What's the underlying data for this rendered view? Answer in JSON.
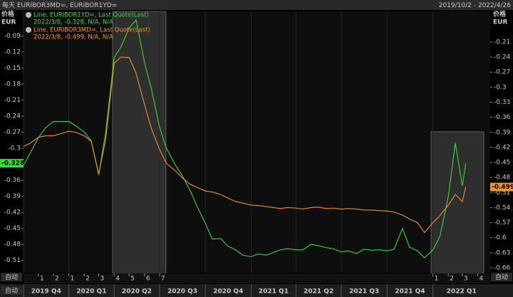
{
  "header": {
    "title": "每天 EURIBOR3MD=, EURIBOR1YD=",
    "date_range": "2019/10/2 - 2022/4/26",
    "auto_button": "自动"
  },
  "chart_data": {
    "type": "line",
    "y_axis_label": "价格",
    "y_unit": "EUR",
    "y2_axis_label": "价格",
    "y2_unit": "EUR",
    "xlim": [
      "2019/10/2",
      "2022/4/26"
    ],
    "x": [
      "2019/10/2",
      "2019/10/15",
      "2019/11/1",
      "2019/11/15",
      "2019/12/1",
      "2019/12/15",
      "2020/1/1",
      "2020/1/15",
      "2020/2/1",
      "2020/2/15",
      "2020/3/1",
      "2020/3/15",
      "2020/4/1",
      "2020/4/15",
      "2020/5/1",
      "2020/5/15",
      "2020/6/1",
      "2020/6/15",
      "2020/7/1",
      "2020/7/15",
      "2020/8/1",
      "2020/8/15",
      "2020/9/1",
      "2020/9/15",
      "2020/10/1",
      "2020/10/15",
      "2020/11/1",
      "2020/11/15",
      "2020/12/1",
      "2020/12/15",
      "2021/1/1",
      "2021/1/15",
      "2021/2/1",
      "2021/2/15",
      "2021/3/1",
      "2021/3/15",
      "2021/4/1",
      "2021/4/15",
      "2021/5/1",
      "2021/5/15",
      "2021/6/1",
      "2021/6/15",
      "2021/7/1",
      "2021/7/15",
      "2021/8/1",
      "2021/8/15",
      "2021/9/1",
      "2021/9/15",
      "2021/10/1",
      "2021/10/15",
      "2021/11/1",
      "2021/11/15",
      "2021/12/1",
      "2021/12/15",
      "2022/1/1",
      "2022/1/15",
      "2022/2/1",
      "2022/2/15",
      "2022/3/1",
      "2022/3/8"
    ],
    "ylim": [
      -0.533,
      -0.044
    ],
    "yticks": [
      -0.09,
      -0.12,
      -0.15,
      -0.18,
      -0.21,
      -0.24,
      -0.27,
      -0.3,
      -0.36,
      -0.39,
      -0.42,
      -0.45,
      -0.48,
      -0.51
    ],
    "y2lim": [
      -0.67,
      -0.149
    ],
    "y2ticks": [
      -0.21,
      -0.24,
      -0.27,
      -0.3,
      -0.33,
      -0.36,
      -0.39,
      -0.42,
      -0.45,
      -0.48,
      -0.51,
      -0.54,
      -0.57,
      -0.6,
      -0.63,
      -0.66
    ],
    "xticks": [
      {
        "value": "2019/11/1",
        "label": "1"
      },
      {
        "value": "2019/12/1",
        "label": "2"
      },
      {
        "value": "2020/1/1",
        "label": "1"
      },
      {
        "value": "2020/2/1",
        "label": "2"
      },
      {
        "value": "2020/3/1",
        "label": "3"
      },
      {
        "value": "2020/4/1",
        "label": "4"
      },
      {
        "value": "2020/5/1",
        "label": "5"
      },
      {
        "value": "2020/6/1",
        "label": "6"
      },
      {
        "value": "2020/7/1",
        "label": "7"
      },
      {
        "value": "2022/1/1",
        "label": "1"
      },
      {
        "value": "2022/2/1",
        "label": "2"
      },
      {
        "value": "2022/3/1",
        "label": "3"
      },
      {
        "value": "2022/4/1",
        "label": "4"
      }
    ],
    "quarters": [
      {
        "value": "2019/10/1",
        "label": "2019 Q4"
      },
      {
        "value": "2020/1/1",
        "label": "2020 Q1"
      },
      {
        "value": "2020/4/1",
        "label": "2020 Q2"
      },
      {
        "value": "2020/7/1",
        "label": "2020 Q3"
      },
      {
        "value": "2020/10/1",
        "label": "2020 Q4"
      },
      {
        "value": "2021/1/1",
        "label": "2021 Q1"
      },
      {
        "value": "2021/4/1",
        "label": "2021 Q2"
      },
      {
        "value": "2021/7/1",
        "label": "2021 Q3"
      },
      {
        "value": "2021/10/1",
        "label": "2021 Q4"
      },
      {
        "value": "2022/1/1",
        "label": "2022 Q1"
      }
    ],
    "series": [
      {
        "name": "Line, EURIBOR1YD=, Last Quote(Last)",
        "legend_detail": "2022/3/8, -0.328, N/A, N/A",
        "color": "#38d838",
        "axis": "y",
        "values": [
          -0.332,
          -0.31,
          -0.28,
          -0.262,
          -0.25,
          -0.25,
          -0.25,
          -0.258,
          -0.27,
          -0.286,
          -0.35,
          -0.27,
          -0.13,
          -0.11,
          -0.075,
          -0.06,
          -0.14,
          -0.19,
          -0.26,
          -0.3,
          -0.33,
          -0.35,
          -0.38,
          -0.41,
          -0.44,
          -0.47,
          -0.469,
          -0.483,
          -0.49,
          -0.5,
          -0.503,
          -0.498,
          -0.5,
          -0.495,
          -0.49,
          -0.488,
          -0.49,
          -0.49,
          -0.48,
          -0.482,
          -0.486,
          -0.488,
          -0.494,
          -0.492,
          -0.497,
          -0.489,
          -0.491,
          -0.49,
          -0.492,
          -0.489,
          -0.45,
          -0.485,
          -0.492,
          -0.505,
          -0.49,
          -0.465,
          -0.39,
          -0.29,
          -0.37,
          -0.328
        ]
      },
      {
        "name": "Line, EURIBOR3MD=, Last Quote(Last)",
        "legend_detail": "2022/3/8, -0.499, N/A, N/A",
        "color": "#f0922c",
        "axis": "y2",
        "values": [
          -0.418,
          -0.412,
          -0.4,
          -0.397,
          -0.397,
          -0.393,
          -0.388,
          -0.39,
          -0.397,
          -0.408,
          -0.473,
          -0.404,
          -0.252,
          -0.24,
          -0.241,
          -0.272,
          -0.335,
          -0.383,
          -0.424,
          -0.452,
          -0.466,
          -0.48,
          -0.494,
          -0.5,
          -0.507,
          -0.509,
          -0.514,
          -0.521,
          -0.528,
          -0.531,
          -0.535,
          -0.536,
          -0.538,
          -0.54,
          -0.542,
          -0.54,
          -0.541,
          -0.543,
          -0.54,
          -0.539,
          -0.542,
          -0.541,
          -0.543,
          -0.542,
          -0.543,
          -0.545,
          -0.545,
          -0.546,
          -0.547,
          -0.549,
          -0.555,
          -0.563,
          -0.57,
          -0.59,
          -0.57,
          -0.556,
          -0.535,
          -0.514,
          -0.528,
          -0.499
        ]
      }
    ]
  }
}
